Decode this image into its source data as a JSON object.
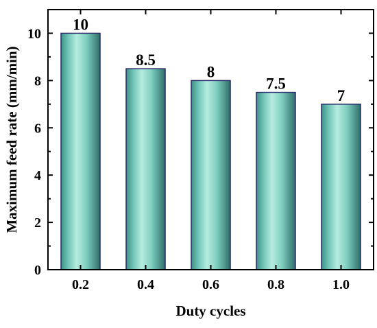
{
  "chart_data": {
    "type": "bar",
    "categories": [
      "0.2",
      "0.4",
      "0.6",
      "0.8",
      "1.0"
    ],
    "values": [
      10,
      8.5,
      8,
      7.5,
      7
    ],
    "data_labels": [
      "10",
      "8.5",
      "8",
      "7.5",
      "7"
    ],
    "xlabel": "Duty cycles",
    "ylabel": "Maximum feed rate (mm/min)",
    "ylim": [
      0,
      11
    ],
    "yticks": [
      0,
      2,
      4,
      6,
      8,
      10
    ],
    "ytick_labels": [
      "0",
      "2",
      "4",
      "6",
      "8",
      "10"
    ],
    "grid": false,
    "legend": false,
    "bar_color": "#6fc4b6",
    "bar_edge_color": "#2a2a6a"
  }
}
